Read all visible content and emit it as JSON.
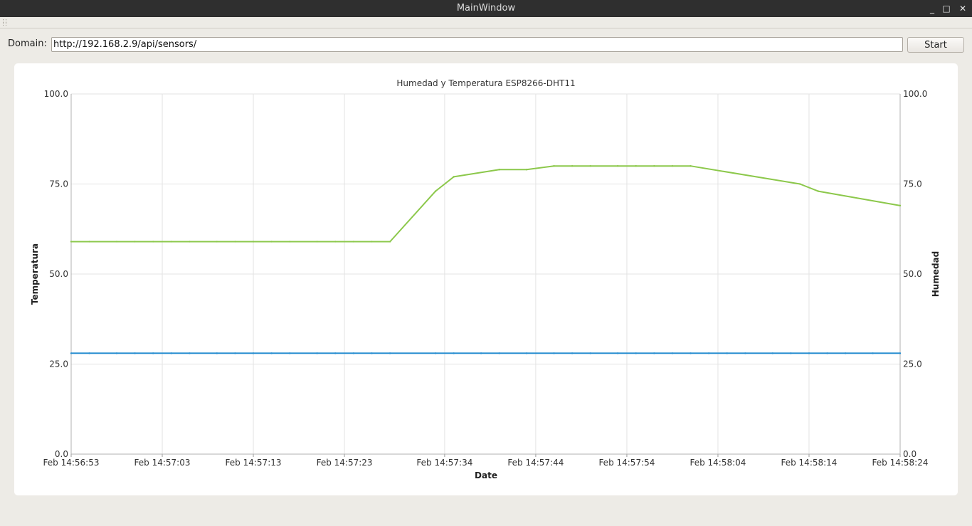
{
  "window": {
    "title": "MainWindow",
    "controls": {
      "minimize": "_",
      "maximize": "□",
      "close": "✕"
    }
  },
  "toolbar": {
    "domain_label": "Domain:",
    "domain_value": "http://192.168.2.9/api/sensors/",
    "start_label": "Start"
  },
  "chart_data": {
    "type": "line",
    "title": "Humedad y Temperatura ESP8266-DHT11",
    "xlabel": "Date",
    "ylabel_left": "Temperatura",
    "ylabel_right": "Humedad",
    "ylim": [
      0,
      100
    ],
    "y_ticks": [
      "0.0",
      "25.0",
      "50.0",
      "75.0",
      "100.0"
    ],
    "x_ticks": [
      "Feb 14:56:53",
      "Feb 14:57:03",
      "Feb 14:57:13",
      "Feb 14:57:23",
      "Feb 14:57:34",
      "Feb 14:57:44",
      "Feb 14:57:54",
      "Feb 14:58:04",
      "Feb 14:58:14",
      "Feb 14:58:24"
    ],
    "grid": true,
    "series": [
      {
        "color": "#8cc84b",
        "x": [
          "14:56:53",
          "14:56:55",
          "14:56:58",
          "14:57:00",
          "14:57:02",
          "14:57:04",
          "14:57:06",
          "14:57:09",
          "14:57:11",
          "14:57:13",
          "14:57:15",
          "14:57:17",
          "14:57:20",
          "14:57:22",
          "14:57:24",
          "14:57:26",
          "14:57:28",
          "14:57:33",
          "14:57:35",
          "14:57:40",
          "14:57:43",
          "14:57:46",
          "14:57:48",
          "14:57:50",
          "14:57:53",
          "14:57:55",
          "14:57:57",
          "14:57:59",
          "14:58:01",
          "14:58:13",
          "14:58:15",
          "14:58:24"
        ],
        "values": [
          59,
          59,
          59,
          59,
          59,
          59,
          59,
          59,
          59,
          59,
          59,
          59,
          59,
          59,
          59,
          59,
          59,
          73,
          77,
          79,
          79,
          80,
          80,
          80,
          80,
          80,
          80,
          80,
          80,
          75,
          73,
          69
        ]
      },
      {
        "color": "#2a8fd1",
        "x": [
          "14:56:53",
          "14:56:55",
          "14:56:58",
          "14:57:00",
          "14:57:02",
          "14:57:04",
          "14:57:06",
          "14:57:09",
          "14:57:11",
          "14:57:13",
          "14:57:15",
          "14:57:17",
          "14:57:20",
          "14:57:22",
          "14:57:24",
          "14:57:26",
          "14:57:28",
          "14:57:33",
          "14:57:35",
          "14:57:38",
          "14:57:40",
          "14:57:43",
          "14:57:46",
          "14:57:48",
          "14:57:50",
          "14:57:53",
          "14:57:55",
          "14:57:57",
          "14:57:59",
          "14:58:01",
          "14:58:03",
          "14:58:05",
          "14:58:07",
          "14:58:10",
          "14:58:12",
          "14:58:14",
          "14:58:16",
          "14:58:18",
          "14:58:21",
          "14:58:24"
        ],
        "values": [
          28,
          28,
          28,
          28,
          28,
          28,
          28,
          28,
          28,
          28,
          28,
          28,
          28,
          28,
          28,
          28,
          28,
          28,
          28,
          28,
          28,
          28,
          28,
          28,
          28,
          28,
          28,
          28,
          28,
          28,
          28,
          28,
          28,
          28,
          28,
          28,
          28,
          28,
          28,
          28
        ]
      }
    ]
  }
}
